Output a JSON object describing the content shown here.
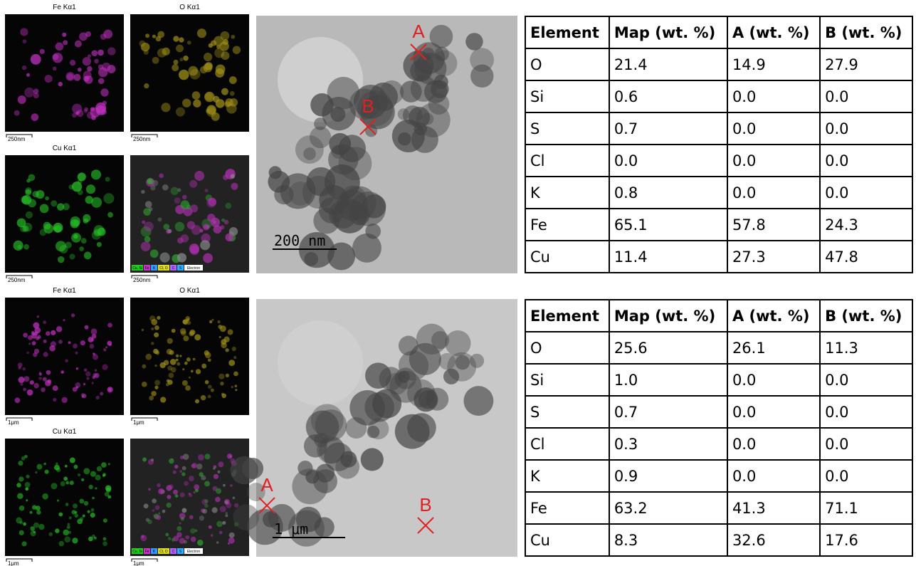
{
  "panels": [
    {
      "maps": [
        {
          "label": "Fe Kα1",
          "scale": "250nm"
        },
        {
          "label": "O Kα1",
          "scale": "250nm"
        },
        {
          "label": "Cu Kα1",
          "scale": "250nm"
        }
      ],
      "overlay": {
        "legend": [
          "Cu, Si",
          "Fe",
          "K",
          "Cl, O",
          "C",
          "S",
          "Electron"
        ],
        "scale": "250nm"
      },
      "tem": {
        "points": [
          "A",
          "B"
        ],
        "scale": "200 nm"
      },
      "table": {
        "header": [
          "Element",
          "Map (wt. %)",
          "A (wt. %)",
          "B (wt. %)"
        ],
        "rows": [
          [
            "O",
            "21.4",
            "14.9",
            "27.9"
          ],
          [
            "Si",
            "0.6",
            "0.0",
            "0.0"
          ],
          [
            "S",
            "0.7",
            "0.0",
            "0.0"
          ],
          [
            "Cl",
            "0.0",
            "0.0",
            "0.0"
          ],
          [
            "K",
            "0.8",
            "0.0",
            "0.0"
          ],
          [
            "Fe",
            "65.1",
            "57.8",
            "24.3"
          ],
          [
            "Cu",
            "11.4",
            "27.3",
            "47.8"
          ]
        ]
      }
    },
    {
      "maps": [
        {
          "label": "Fe Kα1",
          "scale": "1μm"
        },
        {
          "label": "O Kα1",
          "scale": "1μm"
        },
        {
          "label": "Cu Kα1",
          "scale": "1μm"
        }
      ],
      "overlay": {
        "legend": [
          "Cu, Si",
          "Fe",
          "K",
          "Cl, O",
          "C",
          "S",
          "Electron"
        ],
        "scale": "1μm"
      },
      "tem": {
        "points": [
          "A",
          "B"
        ],
        "scale": "1 μm"
      },
      "table": {
        "header": [
          "Element",
          "Map (wt. %)",
          "A (wt. %)",
          "B (wt. %)"
        ],
        "rows": [
          [
            "O",
            "25.6",
            "26.1",
            "11.3"
          ],
          [
            "Si",
            "1.0",
            "0.0",
            "0.0"
          ],
          [
            "S",
            "0.7",
            "0.0",
            "0.0"
          ],
          [
            "Cl",
            "0.3",
            "0.0",
            "0.0"
          ],
          [
            "K",
            "0.9",
            "0.0",
            "0.0"
          ],
          [
            "Fe",
            "63.2",
            "41.3",
            "71.1"
          ],
          [
            "Cu",
            "8.3",
            "32.6",
            "17.6"
          ]
        ]
      }
    }
  ]
}
